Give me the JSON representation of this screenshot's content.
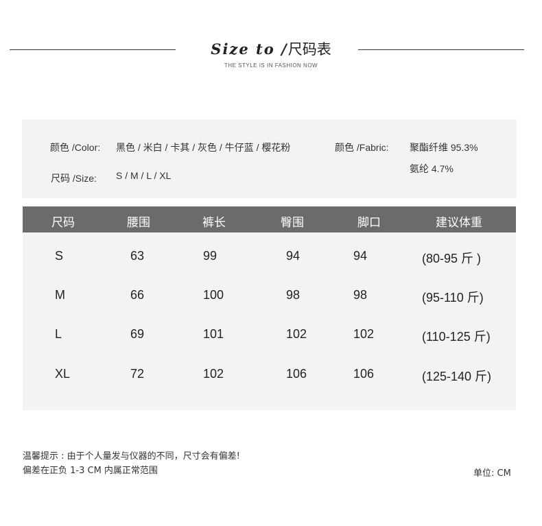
{
  "header": {
    "title_en": "Size to /",
    "title_cn": "尺码表",
    "subtitle": "THE STYLE IS IN FASHION NOW"
  },
  "info": {
    "color_label": "颜色 /Color:",
    "color_value": "黑色 / 米白 / 卡其 / 灰色 / 牛仔蓝 / 樱花粉",
    "fabric_label": "颜色 /Fabric:",
    "fabric_line1": "聚酯纤维 95.3%",
    "fabric_line2": "氨纶 4.7%",
    "size_label": "尺码 /Size:",
    "size_value": "S / M / L / XL"
  },
  "table": {
    "headers": [
      "尺码",
      "腰围",
      "裤长",
      "臀围",
      "脚口",
      "建议体重"
    ],
    "rows": [
      [
        "S",
        "63",
        "99",
        "94",
        "94",
        "(80-95 斤 )"
      ],
      [
        "M",
        "66",
        "100",
        "98",
        "98",
        "(95-110 斤)"
      ],
      [
        "L",
        "69",
        "101",
        "102",
        "102",
        "(110-125 斤)"
      ],
      [
        "XL",
        "72",
        "102",
        "106",
        "106",
        "(125-140 斤)"
      ]
    ]
  },
  "notes": {
    "line1": "温馨提示 : 由于个人量发与仪器的不同，尺寸会有偏差!",
    "line2": "偏差在正负 1-3 CM  内属正常范围",
    "unit": "单位:  CM"
  }
}
